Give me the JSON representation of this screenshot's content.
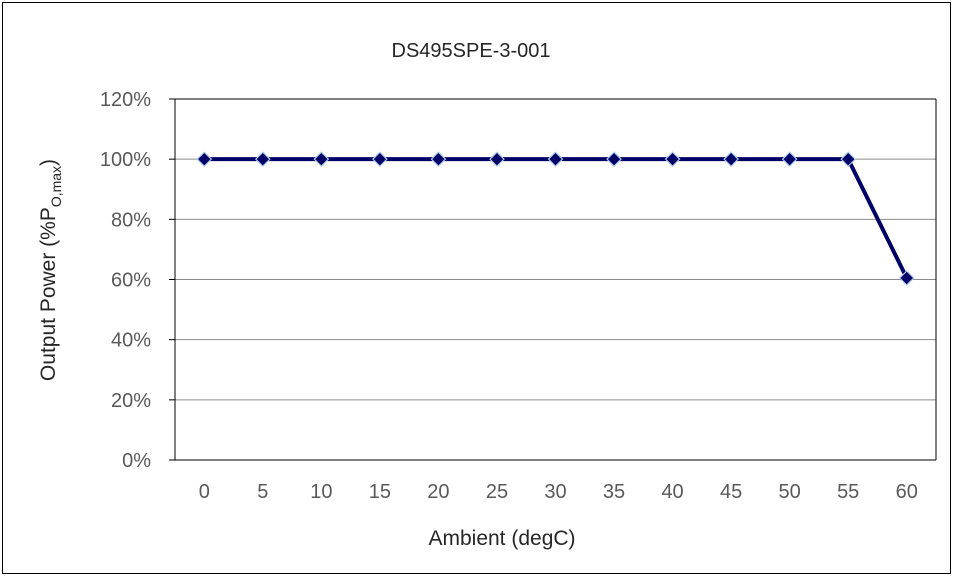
{
  "chart_data": {
    "type": "line",
    "title": "DS495SPE-3-001",
    "xlabel": "Ambient (degC)",
    "ylabel": {
      "prefix": "Output Power (%P",
      "subscript": "O,max",
      "suffix": ")"
    },
    "x": [
      "0",
      "5",
      "10",
      "15",
      "20",
      "25",
      "30",
      "35",
      "40",
      "45",
      "50",
      "55",
      "60"
    ],
    "series": [
      {
        "values": [
          100,
          100,
          100,
          100,
          100,
          100,
          100,
          100,
          100,
          100,
          100,
          100,
          60.5
        ]
      }
    ],
    "ylim": [
      0,
      120
    ],
    "yticks": [
      "0%",
      "20%",
      "40%",
      "60%",
      "80%",
      "100%",
      "120%"
    ],
    "grid": true,
    "legend": "none",
    "colors": {
      "line": "#000066",
      "marker_edge": "#a8c8e8",
      "grid": "#8c8c8c",
      "axis": "#000000"
    }
  }
}
